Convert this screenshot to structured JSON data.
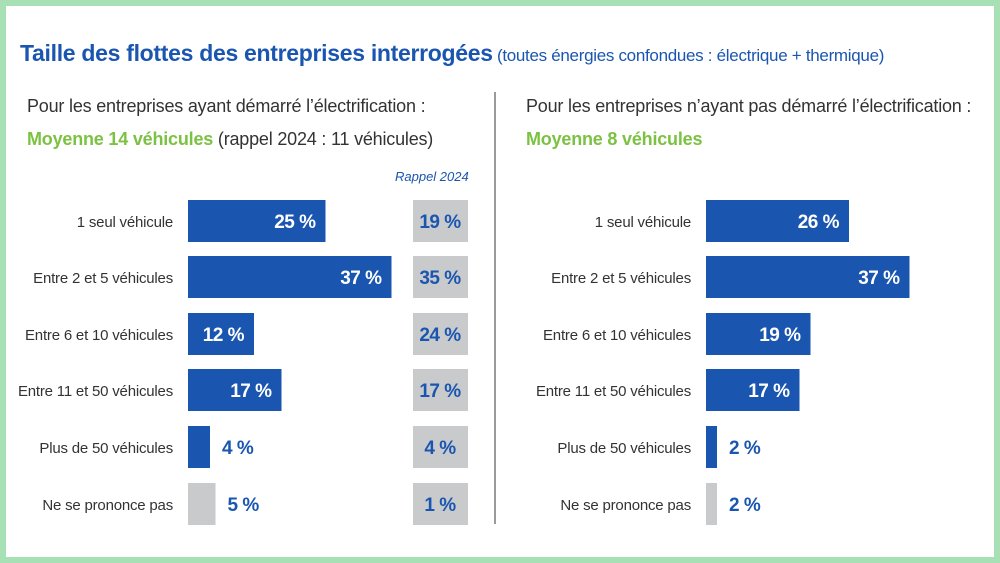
{
  "title": {
    "main": "Taille des flottes des entreprises interrogées",
    "sub": "(toutes énergies confondues : électrique + thermique)"
  },
  "left": {
    "heading": "Pour les entreprises ayant démarré l’électrification :",
    "average": "Moyenne 14 véhicules",
    "average_note": "(rappel 2024 : 11 véhicules)",
    "rappel_title": "Rappel 2024"
  },
  "right": {
    "heading": "Pour les entreprises n’ayant pas démarré l’électrification :",
    "average": "Moyenne 8 véhicules"
  },
  "colors": {
    "bar": "#1a56b0",
    "grey": "#c9cacc",
    "title": "#1a56b0",
    "green": "#7cc242"
  },
  "chart_data": [
    {
      "type": "bar",
      "orientation": "horizontal",
      "title": "Pour les entreprises ayant démarré l’électrification",
      "categories": [
        "1 seul véhicule",
        "Entre 2 et 5 véhicules",
        "Entre 6 et 10 véhicules",
        "Entre 11 et 50 véhicules",
        "Plus de 50 véhicules",
        "Ne se prononce pas"
      ],
      "values": [
        25,
        37,
        12,
        17,
        4,
        5
      ],
      "labels": [
        "25 %",
        "37 %",
        "12 %",
        "17 %",
        "4 %",
        "5 %"
      ],
      "unit": "%",
      "rappel_2024": {
        "name": "Rappel 2024",
        "values": [
          19,
          35,
          24,
          17,
          4,
          1
        ],
        "labels": [
          "19 %",
          "35 %",
          "24 %",
          "17 %",
          "4 %",
          "1 %"
        ]
      }
    },
    {
      "type": "bar",
      "orientation": "horizontal",
      "title": "Pour les entreprises n’ayant pas démarré l’électrification",
      "categories": [
        "1 seul véhicule",
        "Entre 2 et 5 véhicules",
        "Entre 6 et 10 véhicules",
        "Entre 11 et 50 véhicules",
        "Plus de 50 véhicules",
        "Ne se prononce pas"
      ],
      "values": [
        26,
        37,
        19,
        17,
        2,
        2
      ],
      "labels": [
        "26 %",
        "37 %",
        "19 %",
        "17 %",
        "2 %",
        "2 %"
      ],
      "unit": "%"
    }
  ]
}
